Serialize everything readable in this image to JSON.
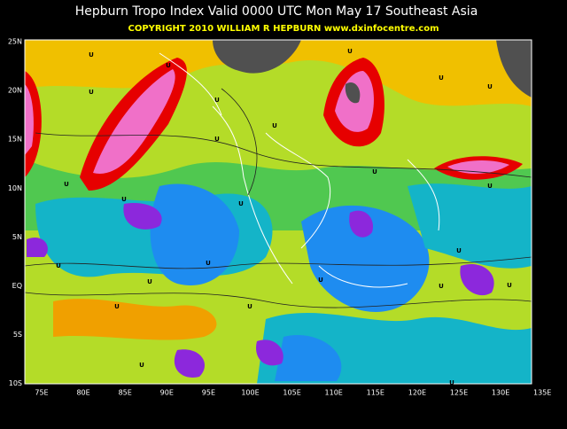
{
  "header": {
    "title": "Hepburn Tropo Index Valid 0000 UTC Mon May 17 Southeast Asia",
    "subtitle": "COPYRIGHT 2010   WILLIAM R HEPBURN   www.dxinfocentre.com"
  },
  "map": {
    "lat_labels": [
      "25N",
      "20N",
      "15N",
      "10N",
      "5N",
      "EQ",
      "5S",
      "10S"
    ],
    "lon_labels": [
      "75E",
      "80E",
      "85E",
      "90E",
      "95E",
      "100E",
      "105E",
      "110E",
      "115E",
      "120E",
      "125E",
      "130E",
      "135E"
    ],
    "markers": [
      "U",
      "U",
      "U",
      "U",
      "U",
      "U",
      "U",
      "U",
      "U",
      "U",
      "U",
      "U",
      "U",
      "U",
      "U",
      "U",
      "U",
      "U",
      "U",
      "U",
      "U",
      "U",
      "U",
      "U",
      "U"
    ]
  }
}
